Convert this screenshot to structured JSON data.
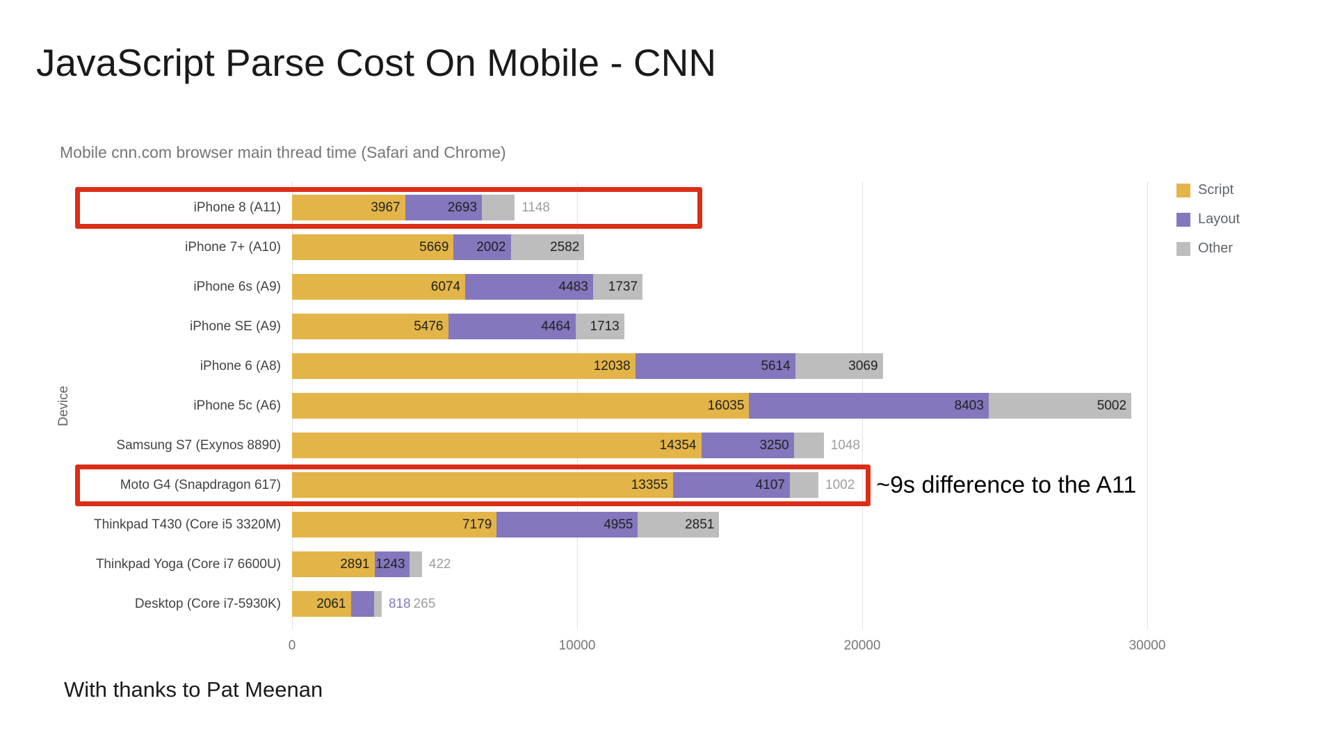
{
  "title": "JavaScript Parse Cost On Mobile - CNN",
  "footer": "With thanks to Pat Meenan",
  "chart_data": {
    "type": "bar",
    "orientation": "horizontal",
    "stacked": true,
    "subtitle": "Mobile cnn.com browser main thread time (Safari and Chrome)",
    "ylabel": "Device",
    "xlim": [
      0,
      30000
    ],
    "x_ticks": [
      0,
      10000,
      20000,
      30000
    ],
    "grid": true,
    "legend_position": "top-right",
    "categories": [
      "iPhone 8 (A11)",
      "iPhone 7+ (A10)",
      "iPhone 6s (A9)",
      "iPhone SE (A9)",
      "iPhone 6 (A8)",
      "iPhone 5c (A6)",
      "Samsung S7 (Exynos 8890)",
      "Moto G4 (Snapdragon 617)",
      "Thinkpad T430 (Core i5 3320M)",
      "Thinkpad Yoga (Core i7 6600U)",
      "Desktop (Core i7-5930K)"
    ],
    "series": [
      {
        "name": "Script",
        "color": "#e3b548",
        "values": [
          3967,
          5669,
          6074,
          5476,
          12038,
          16035,
          14354,
          13355,
          7179,
          2891,
          2061
        ]
      },
      {
        "name": "Layout",
        "color": "#8477bd",
        "values": [
          2693,
          2002,
          4483,
          4464,
          5614,
          8403,
          3250,
          4107,
          4955,
          1243,
          818
        ]
      },
      {
        "name": "Other",
        "color": "#bdbdbd",
        "values": [
          1148,
          2582,
          1737,
          1713,
          3069,
          5002,
          1048,
          1002,
          2851,
          422,
          265
        ]
      }
    ],
    "value_label_colors": {
      "inside": "#212121",
      "outside_other": "#9e9e9e"
    },
    "highlights": [
      {
        "category": "iPhone 8 (A11)",
        "color": "#db2e17",
        "box_end_x": 14400,
        "annotation": ""
      },
      {
        "category": "Moto G4 (Snapdragon 617)",
        "color": "#db2e17",
        "box_end_x": 20300,
        "annotation": "~9s difference to the A11"
      }
    ]
  }
}
